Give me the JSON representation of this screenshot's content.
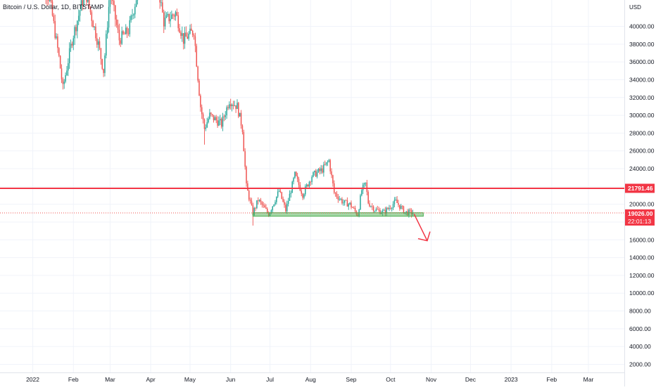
{
  "header": {
    "symbol": "Bitcoin / U.S. Dollar, 1D, BITSTAMP",
    "currency": "USD"
  },
  "chart_data": {
    "type": "candlestick",
    "title": "Bitcoin / U.S. Dollar, 1D, BITSTAMP",
    "ylabel": "USD",
    "ylim": [
      400,
      43200
    ],
    "y_ticks": [
      2000,
      4000,
      6000,
      8000,
      10000,
      12000,
      14000,
      16000,
      18000,
      20000,
      22000,
      24000,
      26000,
      28000,
      30000,
      32000,
      34000,
      36000,
      38000,
      40000
    ],
    "y_tick_labels": [
      "2000.00",
      "4000.00",
      "6000.00",
      "8000.00",
      "10000.00",
      "12000.00",
      "14000.00",
      "16000.00",
      "18000.00",
      "20000.00",
      "22000.00",
      "24000.00",
      "26000.00",
      "28000.00",
      "30000.00",
      "32000.00",
      "34000.00",
      "36000.00",
      "38000.00",
      "40000.00"
    ],
    "x_ticks": [
      "2021-12-01",
      "2022-01-01",
      "2022-02-01",
      "2022-03-01",
      "2022-04-01",
      "2022-05-01",
      "2022-06-01",
      "2022-07-01",
      "2022-08-01",
      "2022-09-01",
      "2022-10-01",
      "2022-11-01",
      "2022-12-01",
      "2023-01-01",
      "2023-02-01",
      "2023-03-01"
    ],
    "x_tick_labels": [
      "Dec",
      "2022",
      "Feb",
      "Mar",
      "Apr",
      "May",
      "Jun",
      "Jul",
      "Aug",
      "Sep",
      "Oct",
      "Nov",
      "Dec",
      "2023",
      "Feb",
      "Mar"
    ],
    "xlim": [
      "2021-12-01",
      "2023-03-21"
    ],
    "grid": true,
    "colors": {
      "up": "#26a69a",
      "down": "#ef5350",
      "line": "#f23645",
      "zone": "#4caf50",
      "grid": "#f0f3fa",
      "axis": "#131722"
    },
    "price_path": [
      [
        "2022-01-04",
        46500
      ],
      [
        "2022-01-14",
        43000
      ],
      [
        "2022-01-21",
        36500
      ],
      [
        "2022-01-24",
        33000
      ],
      [
        "2022-01-31",
        38500
      ],
      [
        "2022-02-10",
        44000
      ],
      [
        "2022-02-20",
        38000
      ],
      [
        "2022-02-24",
        35000
      ],
      [
        "2022-03-01",
        44000
      ],
      [
        "2022-03-08",
        38500
      ],
      [
        "2022-03-15",
        39500
      ],
      [
        "2022-03-28",
        47500
      ],
      [
        "2022-04-05",
        46000
      ],
      [
        "2022-04-11",
        40500
      ],
      [
        "2022-04-20",
        41500
      ],
      [
        "2022-04-26",
        38500
      ],
      [
        "2022-05-04",
        39500
      ],
      [
        "2022-05-06",
        36000
      ],
      [
        "2022-05-09",
        31000
      ],
      [
        "2022-05-12",
        28500
      ],
      [
        "2022-05-16",
        30000
      ],
      [
        "2022-05-25",
        29000
      ],
      [
        "2022-05-31",
        31700
      ],
      [
        "2022-06-06",
        31000
      ],
      [
        "2022-06-10",
        28500
      ],
      [
        "2022-06-13",
        22000
      ],
      [
        "2022-06-18",
        19000
      ],
      [
        "2022-06-22",
        20500
      ],
      [
        "2022-06-30",
        18900
      ],
      [
        "2022-07-08",
        21500
      ],
      [
        "2022-07-13",
        19300
      ],
      [
        "2022-07-20",
        23300
      ],
      [
        "2022-07-26",
        21100
      ],
      [
        "2022-08-02",
        23200
      ],
      [
        "2022-08-10",
        23900
      ],
      [
        "2022-08-15",
        24900
      ],
      [
        "2022-08-19",
        21300
      ],
      [
        "2022-08-26",
        20200
      ],
      [
        "2022-08-31",
        20000
      ],
      [
        "2022-09-06",
        18800
      ],
      [
        "2022-09-09",
        21600
      ],
      [
        "2022-09-12",
        22300
      ],
      [
        "2022-09-14",
        20200
      ],
      [
        "2022-09-19",
        19400
      ],
      [
        "2022-09-26",
        19100
      ],
      [
        "2022-10-05",
        20300
      ],
      [
        "2022-10-12",
        19100
      ],
      [
        "2022-10-18",
        19026
      ]
    ],
    "spikes": [
      [
        "2022-01-24",
        32900
      ],
      [
        "2022-02-24",
        34300
      ],
      [
        "2022-05-12",
        26700
      ],
      [
        "2022-06-18",
        17600
      ]
    ],
    "hlines": [
      {
        "price": 21791.46,
        "label": "21791.46"
      }
    ],
    "support_zone": {
      "low": 18650,
      "high": 19050,
      "from": "2022-06-18",
      "to": "2022-10-26"
    },
    "last_price": {
      "price": 19026.0,
      "label": "19026.00",
      "countdown": "22:01:13"
    },
    "projection": {
      "from": [
        "2022-10-19",
        18900
      ],
      "to": [
        "2022-10-29",
        15900
      ]
    }
  }
}
